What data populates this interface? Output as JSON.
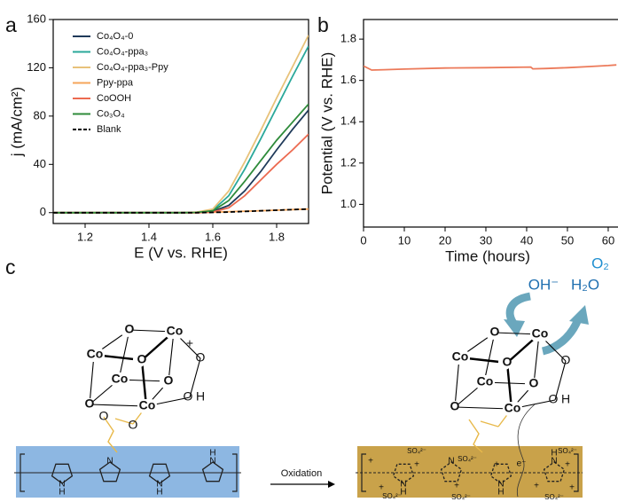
{
  "panel_labels": [
    "a",
    "b",
    "c"
  ],
  "chart_data": [
    {
      "type": "line",
      "x_label": "E (V vs. RHE)",
      "y_label": "j (mA/cm²)",
      "x": [
        1.1,
        1.2,
        1.3,
        1.4,
        1.5,
        1.55,
        1.6,
        1.65,
        1.7,
        1.75,
        1.8,
        1.85,
        1.9
      ],
      "xlim": [
        1.1,
        1.9
      ],
      "xticks": [
        1.2,
        1.4,
        1.6,
        1.8
      ],
      "ylim": [
        -9,
        160
      ],
      "yticks": [
        0,
        40,
        80,
        120,
        160
      ],
      "grid": false,
      "legend": "upper left",
      "series": [
        {
          "name": "Co₄O₄-0",
          "color": "#1f3a5a",
          "linestyle": "solid",
          "values": [
            0,
            0,
            0,
            0,
            0,
            0.2,
            1,
            6,
            18,
            34,
            52,
            69,
            85
          ]
        },
        {
          "name": "Co₄O₄-ppa₃",
          "color": "#2aa89a",
          "linestyle": "solid",
          "values": [
            0,
            0,
            0,
            0,
            0,
            0.3,
            2,
            14,
            36,
            61,
            87,
            113,
            138
          ]
        },
        {
          "name": "Co₄O₄-ppa₃-Ppy",
          "color": "#e8c27a",
          "linestyle": "solid",
          "values": [
            0,
            0,
            0,
            0,
            0,
            0.5,
            3,
            18,
            42,
            68,
            95,
            121,
            147
          ]
        },
        {
          "name": "Ppy-ppa",
          "color": "#f5a55a",
          "linestyle": "solid",
          "values": [
            0,
            0,
            0,
            0,
            0,
            0,
            0.3,
            0.8,
            1.2,
            1.6,
            2,
            2.5,
            3
          ]
        },
        {
          "name": "CoOOH",
          "color": "#ec6a50",
          "linestyle": "solid",
          "values": [
            0,
            0,
            0,
            0,
            0,
            0,
            0.5,
            4,
            14,
            27,
            40,
            52,
            65
          ]
        },
        {
          "name": "Co₃O₄",
          "color": "#2e8b3a",
          "linestyle": "solid",
          "values": [
            0,
            0,
            0,
            0,
            0,
            0.2,
            1.5,
            10,
            26,
            43,
            60,
            75,
            90
          ]
        },
        {
          "name": "Blank",
          "color": "#000000",
          "linestyle": "dashed",
          "values": [
            0,
            0,
            0,
            0,
            0,
            0,
            0.2,
            0.5,
            1,
            1.5,
            2,
            2.5,
            3
          ]
        }
      ]
    },
    {
      "type": "line",
      "x_label": "Time (hours)",
      "y_label": "Potential (V vs. RHE)",
      "x": [
        0,
        2,
        5,
        10,
        20,
        30,
        41,
        41.5,
        45,
        50,
        55,
        60,
        62
      ],
      "xlim": [
        0,
        62.4
      ],
      "xticks": [
        0,
        10,
        20,
        30,
        40,
        50,
        60
      ],
      "ylim": [
        0.89,
        1.895
      ],
      "yticks": [
        {
          "value": 1,
          "label": "1.0"
        },
        1.2,
        1.4,
        1.6,
        1.8
      ],
      "grid": false,
      "legend": false,
      "series": [
        {
          "color": "#ec7a5a",
          "linestyle": "solid",
          "values": [
            1.67,
            1.65,
            1.652,
            1.655,
            1.66,
            1.662,
            1.665,
            1.656,
            1.658,
            1.662,
            1.667,
            1.672,
            1.675
          ]
        }
      ]
    }
  ],
  "diagram": {
    "left_cube": [
      "O",
      "Co",
      "O",
      "Co",
      "Co",
      "O",
      "Co",
      "O"
    ],
    "left_extra": [
      "O",
      "+",
      "O",
      "H",
      "O",
      "O"
    ],
    "right_cube": [
      "O",
      "Co",
      "O",
      "Co",
      "Co",
      "O",
      "Co",
      "O"
    ],
    "right_extra": [
      "O",
      "O",
      "H"
    ],
    "left_rings": [
      [
        "N",
        "H"
      ],
      [
        "N"
      ],
      [
        "N",
        "H"
      ],
      [
        "N",
        "H"
      ]
    ],
    "right_rings": [
      [
        "N",
        "H"
      ],
      [
        "N"
      ],
      [
        "N",
        "H"
      ],
      [
        "N",
        "H"
      ]
    ],
    "arrow_label": "Oxidation",
    "reactants": [
      "OH⁻",
      "H₂O"
    ],
    "product": "O₂",
    "electron": "e⁻",
    "charges": [
      "+",
      "+",
      "+",
      "+",
      "+",
      "+",
      "+",
      "+"
    ],
    "counter_ions": [
      "SO₄²⁻",
      "SO₄²⁻",
      "SO₄²⁻",
      "SO₄²⁻",
      "SO₄²⁻",
      "SO₄²⁻"
    ]
  }
}
